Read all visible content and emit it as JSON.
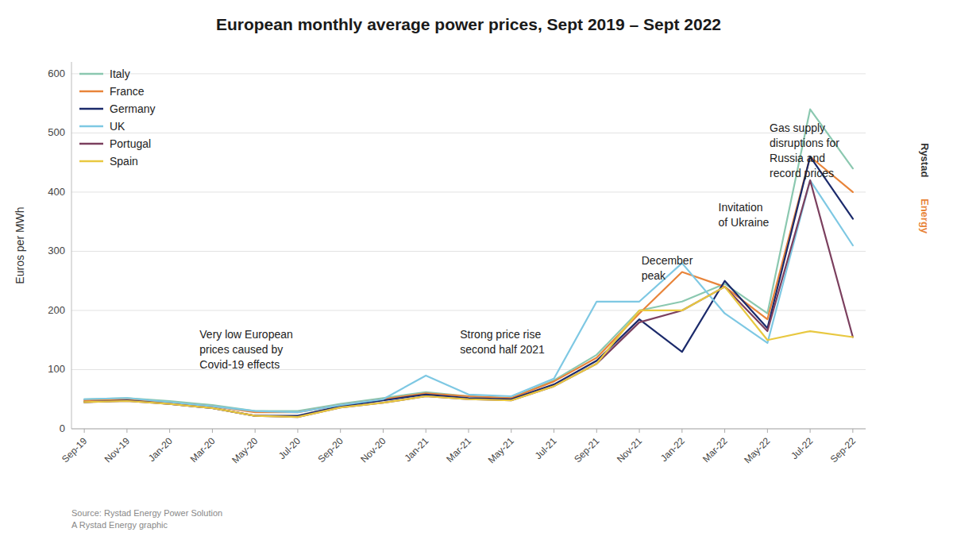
{
  "chart_data": {
    "type": "line",
    "title": "European monthly average power prices, Sept 2019 – Sept 2022",
    "y_label": "Euros per MWh",
    "source": "Source: Rystad Energy Power Solution\nA Rystad Energy graphic",
    "brand": [
      "Rystad",
      "Energy"
    ],
    "categories": [
      "Sep-19",
      "Nov-19",
      "Jan-20",
      "Mar-20",
      "May-20",
      "Jul-20",
      "Sep-20",
      "Nov-20",
      "Jan-21",
      "Mar-21",
      "May-21",
      "Jul-21",
      "Sep-21",
      "Nov-21",
      "Jan-22",
      "Mar-22",
      "May-22",
      "Jul-22",
      "Sep-22"
    ],
    "series": [
      {
        "name": "Italy",
        "color": "#8BC8B0",
        "values": [
          50,
          52,
          47,
          40,
          30,
          30,
          42,
          52,
          62,
          55,
          52,
          82,
          125,
          200,
          215,
          245,
          195,
          540,
          440
        ]
      },
      {
        "name": "France",
        "color": "#E8843A",
        "values": [
          48,
          50,
          44,
          38,
          28,
          28,
          40,
          50,
          60,
          55,
          52,
          80,
          120,
          195,
          265,
          240,
          185,
          460,
          400
        ]
      },
      {
        "name": "Germany",
        "color": "#1B2A6B",
        "values": [
          45,
          48,
          42,
          35,
          22,
          22,
          38,
          48,
          58,
          52,
          50,
          75,
          115,
          185,
          130,
          250,
          170,
          460,
          355
        ]
      },
      {
        "name": "UK",
        "color": "#7EC8E3",
        "values": [
          50,
          52,
          45,
          38,
          30,
          28,
          40,
          50,
          90,
          58,
          55,
          85,
          215,
          215,
          280,
          195,
          145,
          420,
          310
        ]
      },
      {
        "name": "Portugal",
        "color": "#7B3F5E",
        "values": [
          45,
          47,
          42,
          35,
          22,
          20,
          36,
          44,
          55,
          50,
          48,
          72,
          110,
          180,
          200,
          240,
          165,
          420,
          155
        ]
      },
      {
        "name": "Spain",
        "color": "#E8C840",
        "values": [
          45,
          47,
          42,
          35,
          22,
          20,
          36,
          44,
          55,
          50,
          48,
          72,
          110,
          200,
          200,
          240,
          150,
          165,
          155
        ]
      }
    ],
    "annotations": [
      {
        "text": "Very low European\nprices caused by\nCovid-19 effects",
        "x": 2.7,
        "y": 170
      },
      {
        "text": "Strong price rise\nsecond half 2021",
        "x": 8.8,
        "y": 170
      },
      {
        "text": "December\npeak",
        "x": 13.05,
        "y": 295
      },
      {
        "text": "Invitation\nof Ukraine",
        "x": 14.85,
        "y": 385
      },
      {
        "text": "Gas supply\ndisruptions for\nRussia and\nrecord prices",
        "x": 16.05,
        "y": 520
      }
    ],
    "ylim": [
      0,
      620
    ],
    "yticks": [
      0,
      100,
      200,
      300,
      400,
      500,
      600
    ],
    "grid": true,
    "legend": "upper left"
  }
}
